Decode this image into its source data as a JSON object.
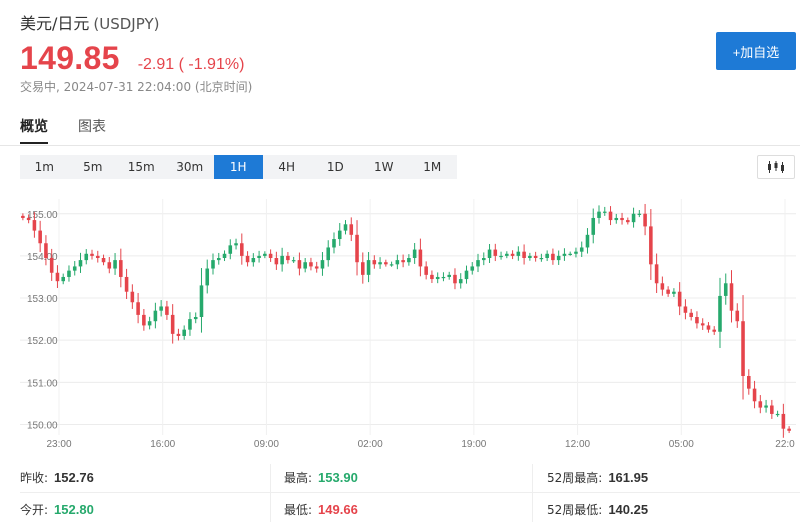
{
  "header": {
    "name": "美元/日元",
    "symbol": "(USDJPY)",
    "price": "149.85",
    "change": "-2.91 ( -1.91%)",
    "status": "交易中, 2024-07-31 22:04:00 (北京时间)",
    "add_button": "+加自选"
  },
  "tabs": [
    {
      "label": "概览",
      "active": true
    },
    {
      "label": "图表",
      "active": false
    }
  ],
  "periods": [
    {
      "label": "1m",
      "active": false
    },
    {
      "label": "5m",
      "active": false
    },
    {
      "label": "15m",
      "active": false
    },
    {
      "label": "30m",
      "active": false
    },
    {
      "label": "1H",
      "active": true
    },
    {
      "label": "4H",
      "active": false
    },
    {
      "label": "1D",
      "active": false
    },
    {
      "label": "1W",
      "active": false
    },
    {
      "label": "1M",
      "active": false
    }
  ],
  "colors": {
    "up": "#26a96c",
    "down": "#e5444b",
    "accent": "#1e7ad6"
  },
  "chart_data": {
    "type": "candlestick",
    "ylim": [
      149.75,
      155.35
    ],
    "yticks": [
      "155.00",
      "154.00",
      "153.00",
      "152.00",
      "151.00",
      "150.00"
    ],
    "xticks": [
      "23:00",
      "16:00",
      "09:00",
      "02:00",
      "19:00",
      "12:00",
      "05:00",
      "22:0"
    ],
    "grid": true,
    "closes": [
      154.9,
      154.85,
      154.6,
      154.3,
      153.95,
      153.6,
      153.4,
      153.5,
      153.65,
      153.75,
      153.9,
      154.05,
      154.0,
      153.95,
      153.85,
      153.7,
      153.9,
      153.5,
      153.15,
      152.9,
      152.6,
      152.35,
      152.45,
      152.7,
      152.8,
      152.6,
      152.15,
      152.1,
      152.25,
      152.5,
      152.55,
      153.3,
      153.7,
      153.9,
      153.95,
      154.05,
      154.25,
      154.3,
      154.0,
      153.85,
      153.95,
      154.0,
      154.05,
      153.95,
      153.8,
      154.0,
      153.9,
      153.9,
      153.7,
      153.85,
      153.75,
      153.7,
      153.9,
      154.2,
      154.4,
      154.6,
      154.75,
      154.5,
      153.85,
      153.55,
      153.9,
      153.8,
      153.85,
      153.8,
      153.8,
      153.9,
      153.85,
      153.95,
      154.15,
      153.75,
      153.55,
      153.45,
      153.5,
      153.5,
      153.55,
      153.35,
      153.45,
      153.65,
      153.75,
      153.9,
      153.95,
      154.15,
      154.0,
      154.0,
      154.05,
      154.0,
      154.1,
      153.95,
      154.0,
      153.95,
      153.95,
      154.05,
      153.9,
      154.0,
      154.05,
      154.05,
      154.1,
      154.2,
      154.5,
      154.9,
      155.05,
      155.05,
      154.85,
      154.9,
      154.85,
      154.8,
      155.0,
      155.0,
      154.7,
      153.8,
      153.35,
      153.2,
      153.1,
      153.15,
      152.8,
      152.65,
      152.55,
      152.4,
      152.35,
      152.25,
      152.2,
      153.05,
      153.35,
      152.7,
      152.45,
      151.15,
      150.85,
      150.55,
      150.4,
      150.45,
      150.25,
      150.25,
      149.9,
      149.85
    ]
  },
  "stats": {
    "prev_close_label": "昨收:",
    "prev_close": "152.76",
    "open_label": "今开:",
    "open": "152.80",
    "high_label": "最高:",
    "high": "153.90",
    "low_label": "最低:",
    "low": "149.66",
    "w52_high_label": "52周最高:",
    "w52_high": "161.95",
    "w52_low_label": "52周最低:",
    "w52_low": "140.25"
  }
}
